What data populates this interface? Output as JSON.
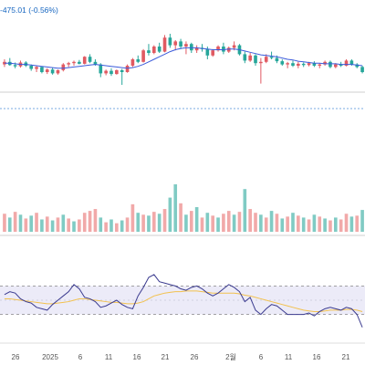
{
  "header": {
    "change_text": "-475.01 (-0.56%)"
  },
  "colors": {
    "up": "#e05a62",
    "down": "#26a69a",
    "volume_up": "#f1a9a9",
    "volume_down": "#80cbc4",
    "ma_line": "#3b5bdb",
    "rsi_line": "#3b3b8f",
    "rsi_signal": "#f2c14e",
    "rsi_band": "#ecebf8",
    "dashed": "#888888"
  },
  "chart_data": {
    "type": "candlestick",
    "x_tick_labels": [
      "26",
      "2025",
      "6",
      "11",
      "16",
      "21",
      "26",
      "2월",
      "6",
      "11",
      "16",
      "21"
    ],
    "price_range": [
      0,
      100
    ],
    "candles": [
      {
        "o": 42,
        "h": 50,
        "l": 38,
        "c": 46
      },
      {
        "o": 46,
        "h": 52,
        "l": 40,
        "c": 41
      },
      {
        "o": 41,
        "h": 45,
        "l": 36,
        "c": 39
      },
      {
        "o": 39,
        "h": 48,
        "l": 37,
        "c": 45
      },
      {
        "o": 45,
        "h": 47,
        "l": 38,
        "c": 40
      },
      {
        "o": 40,
        "h": 42,
        "l": 32,
        "c": 35
      },
      {
        "o": 35,
        "h": 40,
        "l": 30,
        "c": 38
      },
      {
        "o": 38,
        "h": 39,
        "l": 28,
        "c": 30
      },
      {
        "o": 30,
        "h": 36,
        "l": 27,
        "c": 34
      },
      {
        "o": 34,
        "h": 37,
        "l": 26,
        "c": 28
      },
      {
        "o": 28,
        "h": 34,
        "l": 26,
        "c": 33
      },
      {
        "o": 33,
        "h": 44,
        "l": 31,
        "c": 42
      },
      {
        "o": 42,
        "h": 46,
        "l": 38,
        "c": 44
      },
      {
        "o": 44,
        "h": 48,
        "l": 40,
        "c": 46
      },
      {
        "o": 46,
        "h": 49,
        "l": 42,
        "c": 43
      },
      {
        "o": 43,
        "h": 55,
        "l": 42,
        "c": 54
      },
      {
        "o": 54,
        "h": 58,
        "l": 44,
        "c": 46
      },
      {
        "o": 46,
        "h": 50,
        "l": 40,
        "c": 42
      },
      {
        "o": 42,
        "h": 44,
        "l": 22,
        "c": 28
      },
      {
        "o": 28,
        "h": 34,
        "l": 25,
        "c": 32
      },
      {
        "o": 32,
        "h": 36,
        "l": 24,
        "c": 27
      },
      {
        "o": 27,
        "h": 34,
        "l": 26,
        "c": 33
      },
      {
        "o": 33,
        "h": 35,
        "l": 10,
        "c": 30
      },
      {
        "o": 30,
        "h": 42,
        "l": 29,
        "c": 40
      },
      {
        "o": 40,
        "h": 52,
        "l": 38,
        "c": 50
      },
      {
        "o": 50,
        "h": 56,
        "l": 44,
        "c": 46
      },
      {
        "o": 46,
        "h": 66,
        "l": 45,
        "c": 64
      },
      {
        "o": 64,
        "h": 74,
        "l": 56,
        "c": 60
      },
      {
        "o": 60,
        "h": 72,
        "l": 58,
        "c": 70
      },
      {
        "o": 70,
        "h": 76,
        "l": 60,
        "c": 62
      },
      {
        "o": 62,
        "h": 88,
        "l": 61,
        "c": 84
      },
      {
        "o": 84,
        "h": 90,
        "l": 68,
        "c": 72
      },
      {
        "o": 72,
        "h": 80,
        "l": 64,
        "c": 78
      },
      {
        "o": 78,
        "h": 82,
        "l": 66,
        "c": 70
      },
      {
        "o": 70,
        "h": 78,
        "l": 58,
        "c": 74
      },
      {
        "o": 74,
        "h": 76,
        "l": 60,
        "c": 64
      },
      {
        "o": 64,
        "h": 72,
        "l": 60,
        "c": 68
      },
      {
        "o": 68,
        "h": 74,
        "l": 62,
        "c": 66
      },
      {
        "o": 66,
        "h": 70,
        "l": 50,
        "c": 56
      },
      {
        "o": 56,
        "h": 66,
        "l": 54,
        "c": 64
      },
      {
        "o": 64,
        "h": 72,
        "l": 62,
        "c": 70
      },
      {
        "o": 70,
        "h": 76,
        "l": 58,
        "c": 62
      },
      {
        "o": 62,
        "h": 70,
        "l": 60,
        "c": 68
      },
      {
        "o": 68,
        "h": 78,
        "l": 64,
        "c": 72
      },
      {
        "o": 72,
        "h": 74,
        "l": 56,
        "c": 58
      },
      {
        "o": 58,
        "h": 62,
        "l": 44,
        "c": 48
      },
      {
        "o": 48,
        "h": 60,
        "l": 46,
        "c": 56
      },
      {
        "o": 56,
        "h": 58,
        "l": 40,
        "c": 44
      },
      {
        "o": 44,
        "h": 52,
        "l": 12,
        "c": 46
      },
      {
        "o": 46,
        "h": 58,
        "l": 44,
        "c": 54
      },
      {
        "o": 54,
        "h": 62,
        "l": 50,
        "c": 52
      },
      {
        "o": 52,
        "h": 56,
        "l": 44,
        "c": 47
      },
      {
        "o": 47,
        "h": 50,
        "l": 40,
        "c": 42
      },
      {
        "o": 42,
        "h": 46,
        "l": 36,
        "c": 44
      },
      {
        "o": 44,
        "h": 48,
        "l": 38,
        "c": 40
      },
      {
        "o": 40,
        "h": 46,
        "l": 36,
        "c": 43
      },
      {
        "o": 43,
        "h": 45,
        "l": 38,
        "c": 41
      },
      {
        "o": 41,
        "h": 46,
        "l": 39,
        "c": 44
      },
      {
        "o": 44,
        "h": 47,
        "l": 38,
        "c": 40
      },
      {
        "o": 40,
        "h": 44,
        "l": 36,
        "c": 42
      },
      {
        "o": 42,
        "h": 48,
        "l": 40,
        "c": 46
      },
      {
        "o": 46,
        "h": 48,
        "l": 36,
        "c": 38
      },
      {
        "o": 38,
        "h": 44,
        "l": 36,
        "c": 42
      },
      {
        "o": 42,
        "h": 46,
        "l": 38,
        "c": 40
      },
      {
        "o": 40,
        "h": 50,
        "l": 39,
        "c": 48
      },
      {
        "o": 48,
        "h": 50,
        "l": 40,
        "c": 42
      },
      {
        "o": 42,
        "h": 44,
        "l": 36,
        "c": 38
      },
      {
        "o": 38,
        "h": 40,
        "l": 28,
        "c": 30
      }
    ],
    "ma": [
      44,
      44,
      43,
      42,
      42,
      41,
      40,
      39,
      38,
      37,
      36,
      36,
      37,
      38,
      39,
      40,
      41,
      42,
      41,
      40,
      39,
      38,
      37,
      36,
      37,
      39,
      42,
      46,
      50,
      54,
      58,
      62,
      65,
      67,
      68,
      68,
      68,
      67,
      66,
      65,
      65,
      65,
      66,
      66,
      65,
      63,
      61,
      59,
      57,
      56,
      55,
      54,
      52,
      50,
      49,
      47,
      46,
      45,
      44,
      44,
      43,
      43,
      43,
      42,
      42,
      42,
      41,
      40
    ],
    "volume": [
      {
        "v": 38,
        "up": true
      },
      {
        "v": 30,
        "up": false
      },
      {
        "v": 42,
        "up": true
      },
      {
        "v": 36,
        "up": false
      },
      {
        "v": 28,
        "up": true
      },
      {
        "v": 34,
        "up": false
      },
      {
        "v": 40,
        "up": true
      },
      {
        "v": 26,
        "up": false
      },
      {
        "v": 32,
        "up": true
      },
      {
        "v": 24,
        "up": false
      },
      {
        "v": 30,
        "up": true
      },
      {
        "v": 36,
        "up": false
      },
      {
        "v": 28,
        "up": true
      },
      {
        "v": 22,
        "up": false
      },
      {
        "v": 26,
        "up": true
      },
      {
        "v": 40,
        "up": true
      },
      {
        "v": 44,
        "up": true
      },
      {
        "v": 48,
        "up": true
      },
      {
        "v": 30,
        "up": false
      },
      {
        "v": 20,
        "up": true
      },
      {
        "v": 26,
        "up": false
      },
      {
        "v": 18,
        "up": true
      },
      {
        "v": 24,
        "up": false
      },
      {
        "v": 30,
        "up": true
      },
      {
        "v": 58,
        "up": true
      },
      {
        "v": 40,
        "up": false
      },
      {
        "v": 36,
        "up": true
      },
      {
        "v": 34,
        "up": false
      },
      {
        "v": 42,
        "up": true
      },
      {
        "v": 38,
        "up": false
      },
      {
        "v": 48,
        "up": true
      },
      {
        "v": 72,
        "up": false
      },
      {
        "v": 100,
        "up": false
      },
      {
        "v": 60,
        "up": true
      },
      {
        "v": 36,
        "up": false
      },
      {
        "v": 44,
        "up": true
      },
      {
        "v": 52,
        "up": false
      },
      {
        "v": 30,
        "up": true
      },
      {
        "v": 40,
        "up": false
      },
      {
        "v": 34,
        "up": true
      },
      {
        "v": 30,
        "up": false
      },
      {
        "v": 38,
        "up": true
      },
      {
        "v": 44,
        "up": true
      },
      {
        "v": 36,
        "up": false
      },
      {
        "v": 42,
        "up": true
      },
      {
        "v": 90,
        "up": false
      },
      {
        "v": 48,
        "up": true
      },
      {
        "v": 40,
        "up": true
      },
      {
        "v": 36,
        "up": false
      },
      {
        "v": 30,
        "up": true
      },
      {
        "v": 44,
        "up": false
      },
      {
        "v": 38,
        "up": true
      },
      {
        "v": 28,
        "up": false
      },
      {
        "v": 32,
        "up": true
      },
      {
        "v": 40,
        "up": false
      },
      {
        "v": 34,
        "up": true
      },
      {
        "v": 30,
        "up": false
      },
      {
        "v": 26,
        "up": true
      },
      {
        "v": 36,
        "up": false
      },
      {
        "v": 32,
        "up": true
      },
      {
        "v": 28,
        "up": false
      },
      {
        "v": 24,
        "up": true
      },
      {
        "v": 30,
        "up": false
      },
      {
        "v": 26,
        "up": true
      },
      {
        "v": 38,
        "up": true
      },
      {
        "v": 32,
        "up": false
      },
      {
        "v": 34,
        "up": true
      },
      {
        "v": 46,
        "up": false
      }
    ],
    "rsi_band": [
      30,
      70
    ],
    "rsi": [
      58,
      62,
      60,
      52,
      48,
      46,
      40,
      38,
      36,
      44,
      50,
      56,
      62,
      72,
      66,
      54,
      52,
      48,
      40,
      42,
      46,
      50,
      44,
      40,
      38,
      56,
      68,
      82,
      86,
      76,
      74,
      72,
      70,
      66,
      64,
      68,
      70,
      66,
      60,
      56,
      60,
      66,
      72,
      68,
      62,
      48,
      54,
      36,
      30,
      38,
      44,
      42,
      36,
      30,
      30,
      30,
      30,
      32,
      28,
      34,
      38,
      40,
      38,
      36,
      40,
      38,
      30,
      12
    ],
    "rsi_signal": [
      52,
      52,
      51,
      50,
      49,
      48,
      47,
      46,
      45,
      45,
      46,
      47,
      48,
      50,
      52,
      52,
      51,
      50,
      49,
      48,
      47,
      47,
      46,
      45,
      45,
      46,
      48,
      52,
      56,
      58,
      60,
      61,
      62,
      62,
      63,
      63,
      63,
      62,
      61,
      60,
      60,
      60,
      60,
      60,
      59,
      57,
      56,
      54,
      52,
      50,
      48,
      46,
      44,
      42,
      40,
      38,
      36,
      35,
      34,
      34,
      35,
      36,
      36,
      36,
      37,
      37,
      36,
      34
    ]
  }
}
